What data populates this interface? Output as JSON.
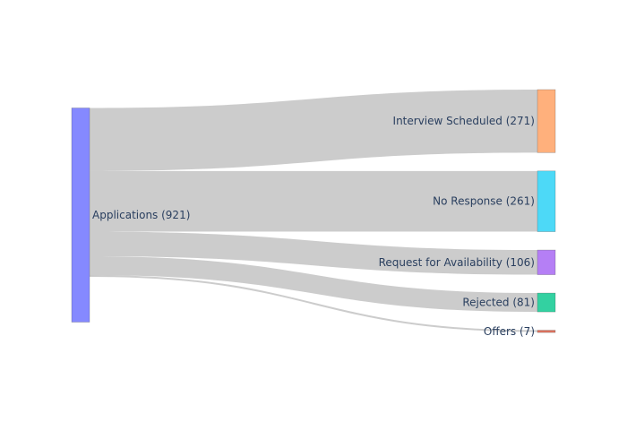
{
  "chart_data": {
    "type": "sankey",
    "title": "",
    "nodes": [
      {
        "id": "applications",
        "label": "Applications (921)",
        "value": 921,
        "color": "#8589ff",
        "column": 0
      },
      {
        "id": "interview",
        "label": "Interview Scheduled (271)",
        "value": 271,
        "color": "#ffb07c",
        "column": 1
      },
      {
        "id": "no_response",
        "label": "No Response (261)",
        "value": 261,
        "color": "#4dd9f7",
        "column": 1
      },
      {
        "id": "availability",
        "label": "Request for Availability (106)",
        "value": 106,
        "color": "#b57ff5",
        "column": 1
      },
      {
        "id": "rejected",
        "label": "Rejected (81)",
        "value": 81,
        "color": "#33d1a1",
        "column": 1
      },
      {
        "id": "offers",
        "label": "Offers (7)",
        "value": 7,
        "color": "#e0735f",
        "column": 1
      }
    ],
    "links": [
      {
        "source": "applications",
        "target": "interview",
        "value": 271
      },
      {
        "source": "applications",
        "target": "no_response",
        "value": 261
      },
      {
        "source": "applications",
        "target": "availability",
        "value": 106
      },
      {
        "source": "applications",
        "target": "rejected",
        "value": 81
      },
      {
        "source": "applications",
        "target": "offers",
        "value": 7
      }
    ],
    "link_color": "#cccccc",
    "label_color": "#2a3f5f"
  }
}
